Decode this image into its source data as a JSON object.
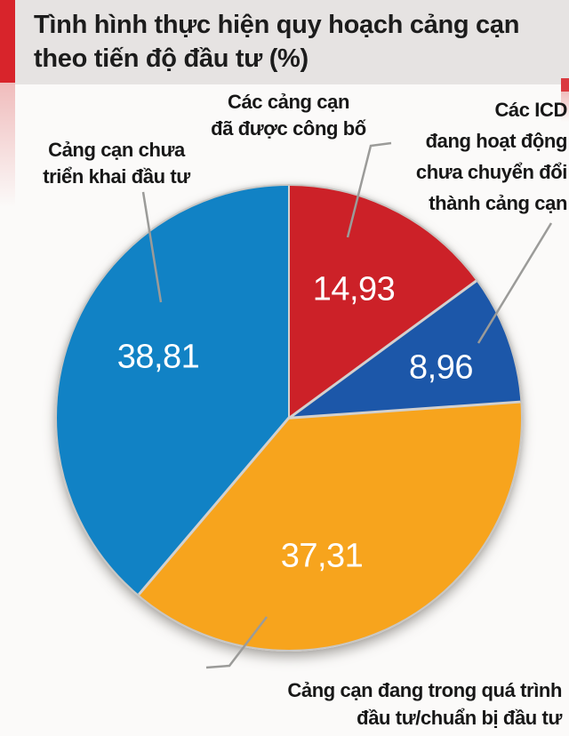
{
  "header": {
    "title_line1": "Tình hình thực hiện quy hoạch cảng cạn",
    "title_line2": "theo tiến độ đầu tư (%)",
    "accent_color": "#d8242b",
    "band_color": "#e6e3e2"
  },
  "chart_data": {
    "type": "pie",
    "title": "Tình hình thực hiện quy hoạch cảng cạn theo tiến độ đầu tư (%)",
    "unit": "%",
    "start_angle_deg": 0,
    "direction": "clockwise",
    "legend_position": "callout-labels",
    "slices": [
      {
        "label": "Các cảng cạn đã được công bố",
        "value": 14.93,
        "display_value": "14,93",
        "color": "#cc2128"
      },
      {
        "label": "Các ICD đang hoạt động chưa chuyển đổi thành cảng cạn",
        "value": 8.96,
        "display_value": "8,96",
        "color": "#1c57a9"
      },
      {
        "label": "Cảng cạn đang trong quá trình đầu tư/chuẩn bị đầu tư",
        "value": 37.31,
        "display_value": "37,31",
        "color": "#f7a41d"
      },
      {
        "label": "Cảng cạn chưa triển khai đầu tư",
        "value": 38.81,
        "display_value": "38,81",
        "color": "#1182c5"
      }
    ]
  },
  "callouts": {
    "left": {
      "line1": "Cảng cạn chưa",
      "line2": "triển khai đầu tư"
    },
    "top": {
      "line1": "Các cảng cạn",
      "line2": "đã được công bố"
    },
    "right": {
      "line1": "Các ICD",
      "line2": "đang hoạt động",
      "line3": "chưa chuyển đổi",
      "line4": "thành cảng cạn"
    },
    "bottom": {
      "line1": "Cảng cạn đang trong quá trình",
      "line2": "đầu tư/chuẩn bị đầu tư"
    }
  }
}
